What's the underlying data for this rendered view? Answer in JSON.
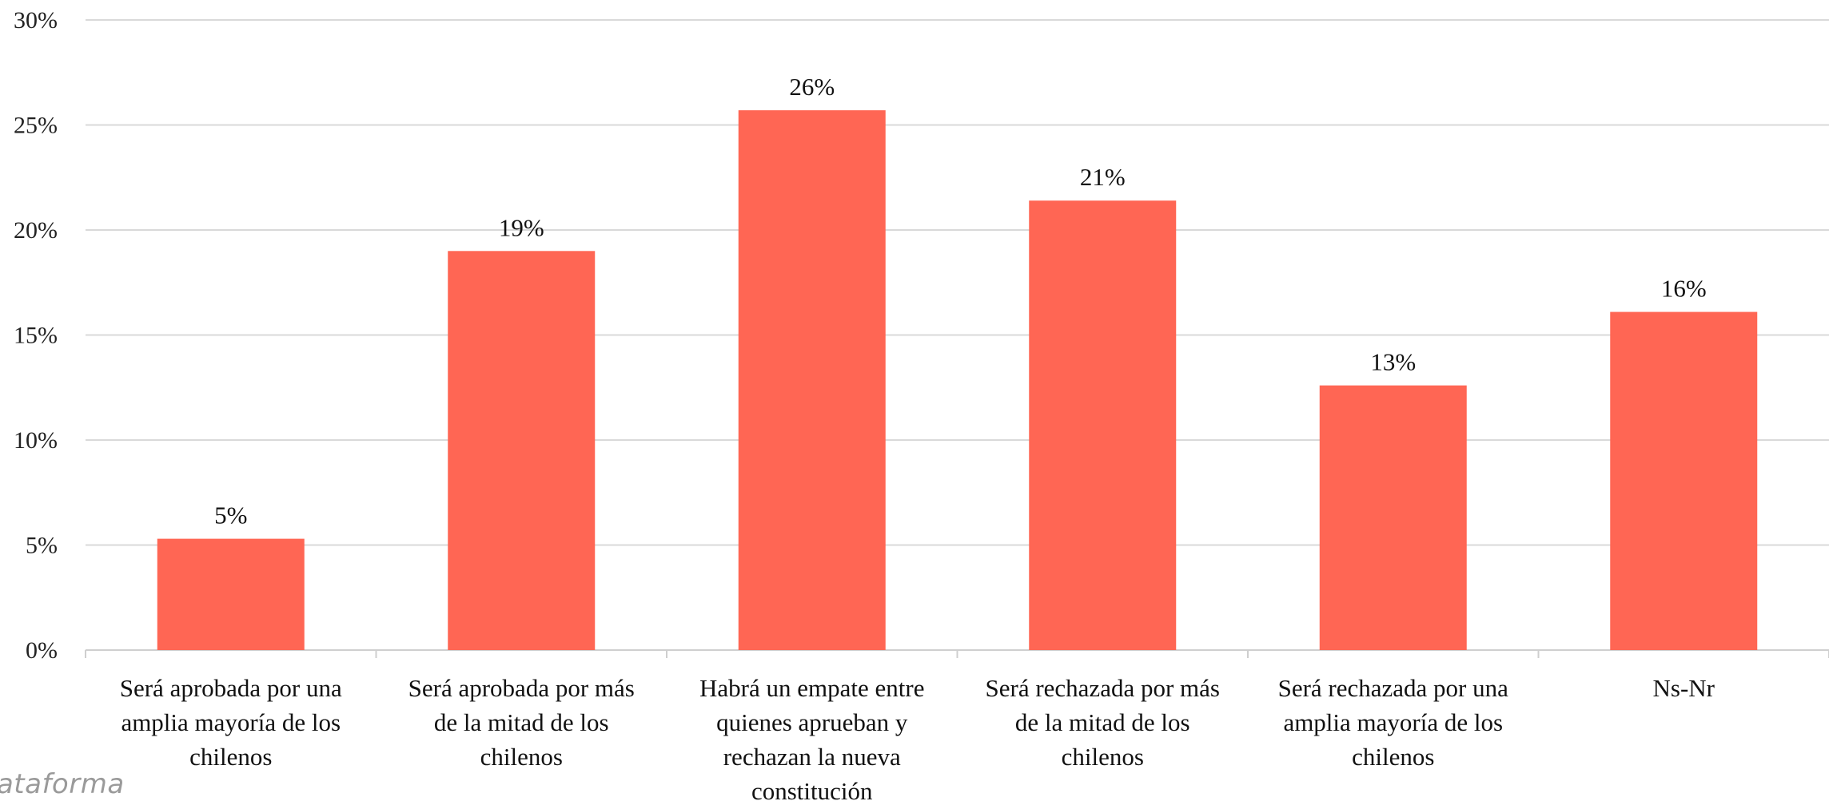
{
  "chart_data": {
    "type": "bar",
    "categories": [
      [
        "Será aprobada por una",
        "amplia mayoría de los",
        "chilenos"
      ],
      [
        "Será aprobada por más",
        "de la mitad de los",
        "chilenos"
      ],
      [
        "Habrá un empate entre",
        "quienes aprueban y",
        "rechazan la nueva",
        "constitución"
      ],
      [
        "Será rechazada por más",
        "de la mitad de los",
        "chilenos"
      ],
      [
        "Será rechazada por una",
        "amplia mayoría de los",
        "chilenos"
      ],
      [
        "Ns-Nr"
      ]
    ],
    "values": [
      5.3,
      19.0,
      25.7,
      21.4,
      12.6,
      16.1
    ],
    "data_labels": [
      "5%",
      "19%",
      "26%",
      "21%",
      "13%",
      "16%"
    ],
    "ylim": [
      0,
      30
    ],
    "yticks": [
      0,
      5,
      10,
      15,
      20,
      25,
      30
    ],
    "ytick_labels": [
      "0%",
      "5%",
      "10%",
      "15%",
      "20%",
      "25%",
      "30%"
    ],
    "grid": true,
    "legend": "none",
    "bar_color": "#ff6654"
  },
  "watermark": "lataforma"
}
